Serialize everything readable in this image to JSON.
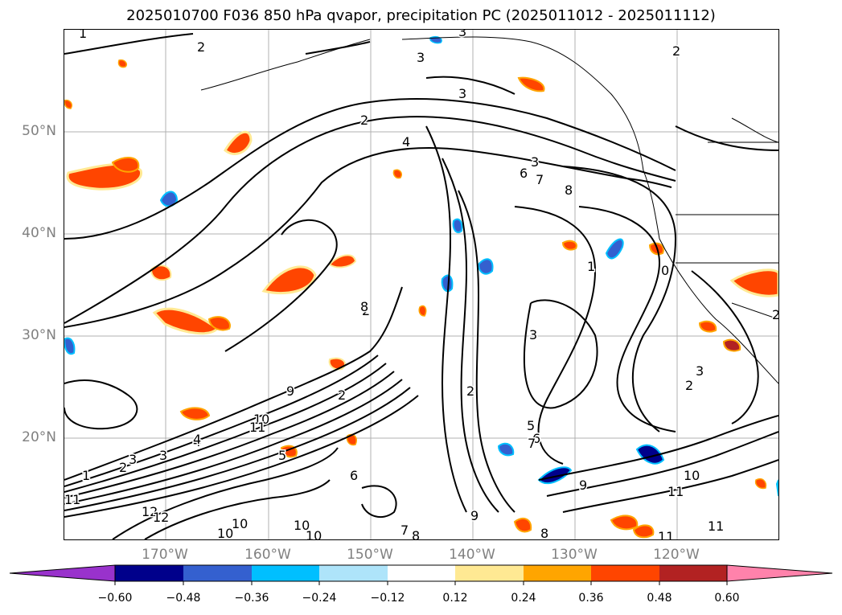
{
  "title": "2025010700 F036 850 hPa qvapor, precipitation PC (2025011012 - 2025011112)",
  "map": {
    "lat_labels": [
      "50°N",
      "40°N",
      "30°N",
      "20°N"
    ],
    "lon_labels": [
      "170°W",
      "160°W",
      "150°W",
      "140°W",
      "130°W",
      "120°W"
    ],
    "contour_labels": [
      "1",
      "2",
      "3",
      "3",
      "3",
      "2",
      "2",
      "4",
      "3",
      "6",
      "7",
      "8",
      "2",
      "8",
      "9",
      "10",
      "1",
      "2",
      "3",
      "4",
      "5",
      "6",
      "2",
      "3",
      "3",
      "2",
      "5",
      "6",
      "7",
      "8",
      "9",
      "10",
      "11",
      "11",
      "12",
      "10",
      "10",
      "7",
      "8",
      "9",
      "10",
      "11",
      "11",
      "10",
      "11",
      "12",
      "2",
      "3",
      "4",
      "1",
      "0",
      "2"
    ]
  },
  "colorbar": {
    "colors": [
      "#9932cc",
      "#00008b",
      "#3460cf",
      "#00bfff",
      "#aee4fa",
      "#ffffff",
      "#ffe993",
      "#ffa500",
      "#ff4500",
      "#b22222",
      "#ff82ab"
    ],
    "ticks": [
      "−0.60",
      "−0.48",
      "−0.36",
      "−0.24",
      "−0.12",
      "0.12",
      "0.24",
      "0.36",
      "0.48",
      "0.60"
    ],
    "extend": "both"
  }
}
